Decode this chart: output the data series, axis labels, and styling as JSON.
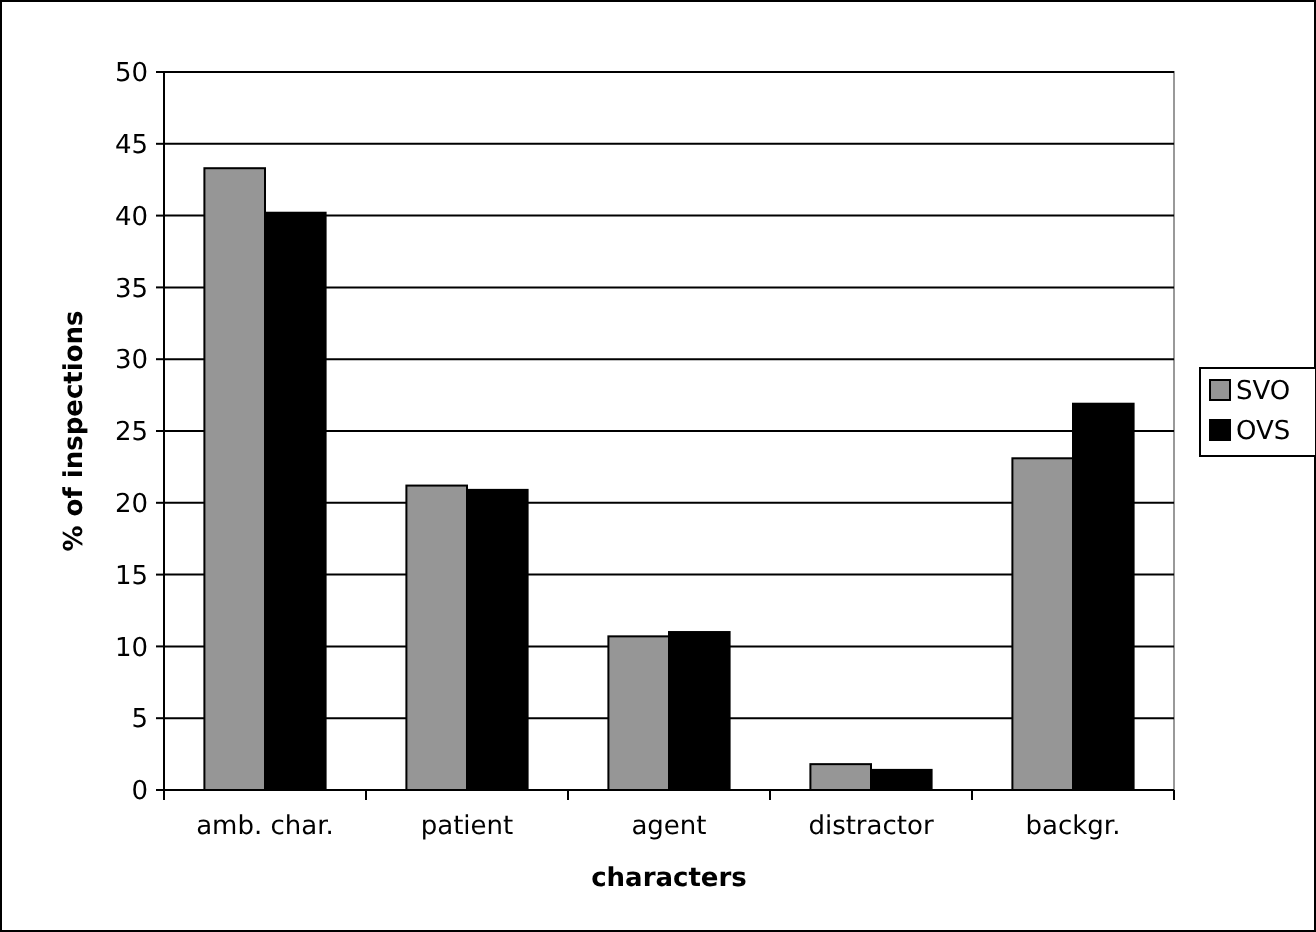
{
  "chart_data": {
    "type": "bar",
    "xlabel": "characters",
    "ylabel": "% of inspections",
    "categories": [
      "amb. char.",
      "patient",
      "agent",
      "distractor",
      "backgr."
    ],
    "series": [
      {
        "name": "SVO",
        "color": "#969696",
        "values": [
          43.3,
          21.2,
          10.7,
          1.8,
          23.1
        ]
      },
      {
        "name": "OVS",
        "color": "#000000",
        "values": [
          40.2,
          20.9,
          11.0,
          1.4,
          26.9
        ]
      }
    ],
    "ylim": [
      0,
      50
    ],
    "yticks": [
      0,
      5,
      10,
      15,
      20,
      25,
      30,
      35,
      40,
      45,
      50
    ],
    "grid": "y",
    "legend": "right"
  }
}
